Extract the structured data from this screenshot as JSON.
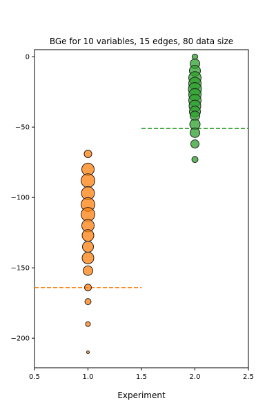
{
  "chart_data": {
    "type": "scatter",
    "title": "BGe for 10 variables, 15 edges, 80 data size",
    "xlabel": "Experiment",
    "ylabel": "",
    "xlim": [
      0.5,
      2.5
    ],
    "ylim": [
      -221,
      5
    ],
    "xticks": [
      0.5,
      1.0,
      1.5,
      2.0,
      2.5
    ],
    "xtick_labels": [
      "0.5",
      "1.0",
      "1.5",
      "2.0",
      "2.5"
    ],
    "yticks": [
      0,
      -50,
      -100,
      -150,
      -200
    ],
    "ytick_labels": [
      "0",
      "−50",
      "−100",
      "−150",
      "−200"
    ],
    "grid": false,
    "legend": "none",
    "series": [
      {
        "color": "#ff7f0e",
        "x": 1.0,
        "points": [
          {
            "y": -69,
            "size": 5.5
          },
          {
            "y": -80,
            "size": 9
          },
          {
            "y": -88,
            "size": 10
          },
          {
            "y": -97,
            "size": 9.5
          },
          {
            "y": -105,
            "size": 10
          },
          {
            "y": -112,
            "size": 10
          },
          {
            "y": -120,
            "size": 9
          },
          {
            "y": -127,
            "size": 8.5
          },
          {
            "y": -135,
            "size": 8
          },
          {
            "y": -143,
            "size": 8.5
          },
          {
            "y": -152,
            "size": 7
          },
          {
            "y": -164,
            "size": 5
          },
          {
            "y": -174,
            "size": 4.5
          },
          {
            "y": -190,
            "size": 3.5
          },
          {
            "y": -210,
            "size": 2
          }
        ],
        "reference_line": {
          "y": -164,
          "x_from": 0.5,
          "x_to": 1.5
        }
      },
      {
        "color": "#2ca02c",
        "x": 2.0,
        "points": [
          {
            "y": 0,
            "size": 4
          },
          {
            "y": -5,
            "size": 7
          },
          {
            "y": -10,
            "size": 8
          },
          {
            "y": -15,
            "size": 9
          },
          {
            "y": -19,
            "size": 9
          },
          {
            "y": -23,
            "size": 9.5
          },
          {
            "y": -27,
            "size": 9
          },
          {
            "y": -31,
            "size": 9
          },
          {
            "y": -35,
            "size": 8.5
          },
          {
            "y": -39,
            "size": 8
          },
          {
            "y": -42,
            "size": 7
          },
          {
            "y": -48,
            "size": 7.5
          },
          {
            "y": -54,
            "size": 7
          },
          {
            "y": -62,
            "size": 6
          },
          {
            "y": -73,
            "size": 4.5
          }
        ],
        "reference_line": {
          "y": -51,
          "x_from": 1.5,
          "x_to": 2.5
        }
      }
    ]
  }
}
